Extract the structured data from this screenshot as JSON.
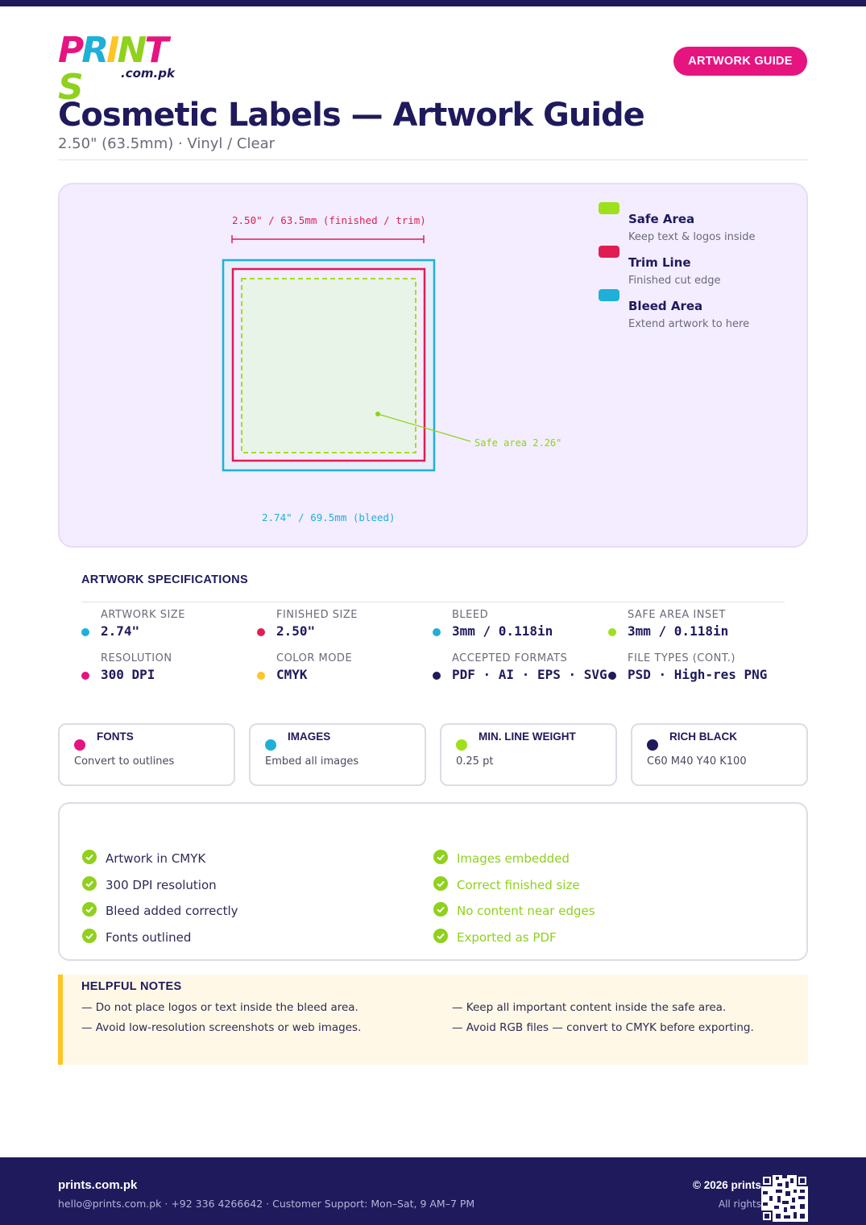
{
  "brand": {
    "logo_letters": [
      {
        "char": "P",
        "color": "#e6147f"
      },
      {
        "char": "R",
        "color": "#1fb0d8"
      },
      {
        "char": "I",
        "color": "#ffc425"
      },
      {
        "char": "N",
        "color": "#8fd11c"
      },
      {
        "char": "T",
        "color": "#e6147f"
      },
      {
        "char": "S",
        "color": "#8fd11c"
      }
    ],
    "logo_sub": ".com.pk"
  },
  "header": {
    "badge": "ARTWORK GUIDE",
    "title": "Cosmetic Labels — Artwork Guide",
    "subtitle": "2.50\" (63.5mm) · Vinyl / Clear"
  },
  "diagram": {
    "trim_dimension": "2.50\" / 63.5mm (finished / trim)",
    "bleed_dimension": "2.74\" / 69.5mm (bleed)",
    "safe_callout": "Safe area 2.26\"",
    "legend": [
      {
        "name": "Safe Area",
        "desc": "Keep text & logos inside",
        "color": "#9ee01c"
      },
      {
        "name": "Trim Line",
        "desc": "Finished cut edge",
        "color": "#e01d53"
      },
      {
        "name": "Bleed Area",
        "desc": "Extend artwork to here",
        "color": "#1fb0d8"
      }
    ]
  },
  "specs": {
    "title": "ARTWORK SPECIFICATIONS",
    "items": [
      {
        "label": "ARTWORK SIZE",
        "value": "2.74\"",
        "color": "#1fb0d8"
      },
      {
        "label": "FINISHED SIZE",
        "value": "2.50\"",
        "color": "#e01d53"
      },
      {
        "label": "BLEED",
        "value": "3mm / 0.118in",
        "color": "#1fb0d8"
      },
      {
        "label": "SAFE AREA INSET",
        "value": "3mm / 0.118in",
        "color": "#9ee01c"
      },
      {
        "label": "RESOLUTION",
        "value": "300 DPI",
        "color": "#e6147f"
      },
      {
        "label": "COLOR MODE",
        "value": "CMYK",
        "color": "#ffc425"
      },
      {
        "label": "ACCEPTED FORMATS",
        "value": "PDF · AI · EPS · SVG",
        "color": "#1f1a5c"
      },
      {
        "label": "FILE TYPES (CONT.)",
        "value": "PSD · High-res PNG",
        "color": "#1f1a5c"
      }
    ]
  },
  "cards": [
    {
      "title": "FONTS",
      "text": "Convert to outlines",
      "color": "#e6147f"
    },
    {
      "title": "IMAGES",
      "text": "Embed all images",
      "color": "#1fb0d8"
    },
    {
      "title": "MIN. LINE WEIGHT",
      "text": "0.25 pt",
      "color": "#9ee01c"
    },
    {
      "title": "RICH BLACK",
      "text": "C60 M40 Y40 K100",
      "color": "#1f1a5c"
    }
  ],
  "checklist": {
    "left": [
      "Artwork in CMYK",
      "300 DPI resolution",
      "Bleed added correctly",
      "Fonts outlined"
    ],
    "right": [
      "Images embedded",
      "Correct finished size",
      "No content near edges",
      "Exported as PDF"
    ]
  },
  "notes": {
    "title": "HELPFUL NOTES",
    "items": [
      "— Do not place logos or text inside the bleed area.",
      "— Keep all important content inside the safe area.",
      "— Avoid low-resolution screenshots or web images.",
      "— Avoid RGB files — convert to CMYK before exporting."
    ]
  },
  "footer": {
    "brand": "prints.com.pk",
    "contact": "hello@prints.com.pk · +92 336 4266642 · Customer Support: Mon–Sat, 9 AM–7 PM",
    "copyright": "© 2026 prints",
    "rights": "All rights"
  }
}
